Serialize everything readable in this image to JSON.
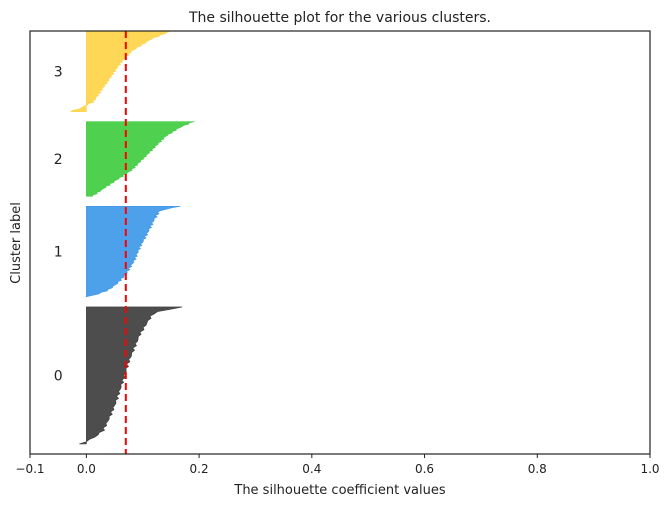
{
  "chart_data": {
    "type": "area",
    "title": "The silhouette plot for the various clusters.",
    "xlabel": "The silhouette coefficient values",
    "ylabel": "Cluster label",
    "xlim": [
      -0.1,
      1.0
    ],
    "ylim": [
      0,
      420
    ],
    "xticks": [
      -0.1,
      0.0,
      0.2,
      0.4,
      0.6,
      0.8,
      1.0
    ],
    "xtick_labels": [
      "−0.1",
      "0.0",
      "0.2",
      "0.4",
      "0.6",
      "0.8",
      "1.0"
    ],
    "grid": false,
    "average_silhouette": 0.07,
    "average_line_color": "#ff0000",
    "clusters": [
      {
        "label": "0",
        "color": "#3a3a3a",
        "y_lower": 10,
        "size": 136,
        "profile": [
          [
            0,
            0.17
          ],
          [
            0.04,
            0.12
          ],
          [
            0.1,
            0.11
          ],
          [
            0.2,
            0.095
          ],
          [
            0.3,
            0.085
          ],
          [
            0.4,
            0.075
          ],
          [
            0.5,
            0.068
          ],
          [
            0.6,
            0.06
          ],
          [
            0.7,
            0.052
          ],
          [
            0.8,
            0.042
          ],
          [
            0.9,
            0.03
          ],
          [
            0.95,
            0.015
          ],
          [
            1.0,
            -0.01
          ]
        ]
      },
      {
        "label": "1",
        "color": "#3a96e8",
        "y_lower": 156,
        "size": 90,
        "profile": [
          [
            0,
            0.165
          ],
          [
            0.05,
            0.13
          ],
          [
            0.15,
            0.12
          ],
          [
            0.3,
            0.108
          ],
          [
            0.45,
            0.095
          ],
          [
            0.6,
            0.085
          ],
          [
            0.75,
            0.07
          ],
          [
            0.85,
            0.055
          ],
          [
            0.92,
            0.04
          ],
          [
            0.97,
            0.02
          ],
          [
            1.0,
            0.0
          ]
        ]
      },
      {
        "label": "2",
        "color": "#3ccc3c",
        "y_lower": 256,
        "size": 74,
        "profile": [
          [
            0,
            0.19
          ],
          [
            0.08,
            0.165
          ],
          [
            0.2,
            0.14
          ],
          [
            0.35,
            0.12
          ],
          [
            0.5,
            0.1
          ],
          [
            0.65,
            0.08
          ],
          [
            0.8,
            0.05
          ],
          [
            0.9,
            0.03
          ],
          [
            1.0,
            0.01
          ]
        ]
      },
      {
        "label": "3",
        "color": "#ffd344",
        "y_lower": 340,
        "size": 80,
        "profile": [
          [
            0,
            0.15
          ],
          [
            0.1,
            0.115
          ],
          [
            0.25,
            0.08
          ],
          [
            0.4,
            0.06
          ],
          [
            0.55,
            0.045
          ],
          [
            0.7,
            0.03
          ],
          [
            0.8,
            0.02
          ],
          [
            0.88,
            0.012
          ],
          [
            0.92,
            0.0
          ],
          [
            0.96,
            -0.01
          ],
          [
            1.0,
            -0.03
          ]
        ]
      }
    ]
  }
}
